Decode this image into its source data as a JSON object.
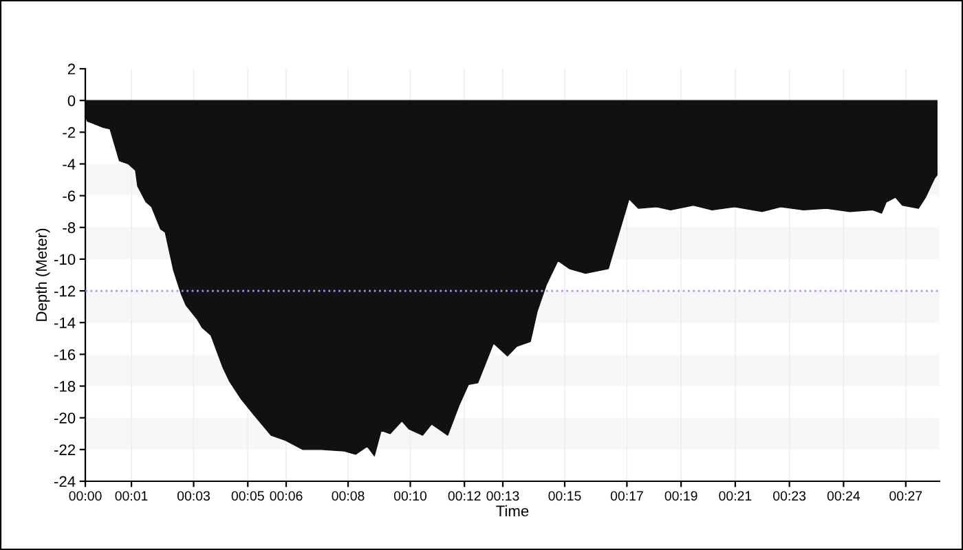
{
  "chart_data": {
    "type": "area",
    "xlabel": "Time",
    "ylabel": "Depth (Meter)",
    "x": [
      0,
      0,
      0.06,
      0.58,
      0.8,
      0.95,
      1.1,
      1.39,
      1.62,
      1.69,
      1.96,
      2.14,
      2.43,
      2.58,
      2.85,
      3.1,
      3.25,
      3.62,
      3.77,
      4.06,
      4.44,
      4.66,
      5.03,
      5.4,
      6.0,
      6.44,
      7.03,
      7.63,
      8.37,
      8.74,
      9.11,
      9.34,
      9.56,
      9.85,
      10.23,
      10.45,
      10.9,
      11.19,
      11.49,
      11.71,
      12.08,
      12.38,
      12.68,
      13.19,
      13.64,
      13.94,
      14.38,
      14.6,
      14.9,
      15.27,
      15.64,
      16.16,
      16.9,
      17.57,
      17.87,
      18.46,
      18.91,
      19.65,
      20.25,
      20.98,
      21.88,
      22.47,
      23.21,
      23.95,
      24.7,
      25.44,
      25.73,
      25.88,
      26.18,
      26.4,
      26.92,
      27.15,
      27.44,
      27.52
    ],
    "series": [
      {
        "color": "#111111",
        "values": [
          0,
          -0.9,
          -1.3,
          -1.7,
          -1.8,
          -2.8,
          -3.8,
          -4.0,
          -4.4,
          -5.4,
          -6.4,
          -6.7,
          -8.1,
          -8.3,
          -10.7,
          -12.2,
          -12.9,
          -13.8,
          -14.3,
          -14.8,
          -16.8,
          -17.7,
          -18.8,
          -19.7,
          -21.1,
          -21.4,
          -22.0,
          -22.0,
          -22.1,
          -22.3,
          -21.8,
          -22.4,
          -20.8,
          -21.0,
          -20.2,
          -20.7,
          -21.1,
          -20.4,
          -20.8,
          -21.1,
          -19.2,
          -17.9,
          -17.8,
          -15.3,
          -16.1,
          -15.5,
          -15.2,
          -13.3,
          -11.6,
          -10.1,
          -10.6,
          -10.9,
          -10.6,
          -6.2,
          -6.8,
          -6.7,
          -6.9,
          -6.6,
          -6.9,
          -6.7,
          -7.0,
          -6.7,
          -6.9,
          -6.8,
          -7.0,
          -6.9,
          -7.1,
          -6.4,
          -6.1,
          -6.6,
          -6.8,
          -6.1,
          -4.9,
          -4.7
        ]
      }
    ],
    "xlim": [
      0,
      27.6
    ],
    "ylim": [
      -24,
      2
    ],
    "xticks": [
      {
        "value": 0,
        "label": "00:00"
      },
      {
        "value": 1.49,
        "label": "00:01"
      },
      {
        "value": 3.5,
        "label": "00:03"
      },
      {
        "value": 5.25,
        "label": "00:05"
      },
      {
        "value": 6.49,
        "label": "00:06"
      },
      {
        "value": 8.49,
        "label": "00:08"
      },
      {
        "value": 10.5,
        "label": "00:10"
      },
      {
        "value": 12.25,
        "label": "00:12"
      },
      {
        "value": 13.49,
        "label": "00:13"
      },
      {
        "value": 15.49,
        "label": "00:15"
      },
      {
        "value": 17.5,
        "label": "00:17"
      },
      {
        "value": 19.25,
        "label": "00:19"
      },
      {
        "value": 21,
        "label": "00:21"
      },
      {
        "value": 22.75,
        "label": "00:23"
      },
      {
        "value": 24.5,
        "label": "00:24"
      },
      {
        "value": 26.51,
        "label": "00:27"
      }
    ],
    "yticks": [
      2,
      0,
      -2,
      -4,
      -6,
      -8,
      -10,
      -12,
      -14,
      -16,
      -18,
      -20,
      -22,
      -24
    ],
    "ref_lines": [
      {
        "axis": "y",
        "value": -12,
        "color": "#9999ff",
        "line_style": "dotted"
      }
    ],
    "bands": [
      {
        "axis": "y",
        "from": -6,
        "to": -4,
        "color": "#f7f7f7"
      },
      {
        "axis": "y",
        "from": -10,
        "to": -8,
        "color": "#f7f7f7"
      },
      {
        "axis": "y",
        "from": -14,
        "to": -12,
        "color": "#f7f7f7"
      },
      {
        "axis": "y",
        "from": -18,
        "to": -16,
        "color": "#f7f7f7"
      },
      {
        "axis": "y",
        "from": -22,
        "to": -20,
        "color": "#f7f7f7"
      }
    ],
    "grid": "x",
    "legend": false
  }
}
